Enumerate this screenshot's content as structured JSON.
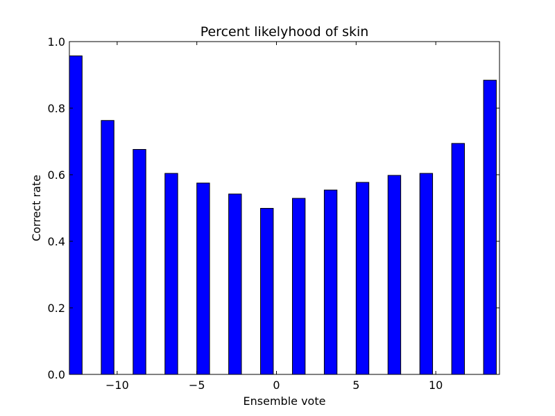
{
  "chart_data": {
    "type": "bar",
    "title": "Percent likelyhood of skin",
    "xlabel": "Ensemble vote",
    "ylabel": "Correct rate",
    "xlim": [
      -13,
      14
    ],
    "ylim": [
      0,
      1.0
    ],
    "x": [
      -13,
      -11,
      -9,
      -7,
      -5,
      -3,
      -1,
      1,
      3,
      5,
      7,
      9,
      11,
      13
    ],
    "values": [
      0.957,
      0.763,
      0.676,
      0.604,
      0.575,
      0.542,
      0.499,
      0.529,
      0.554,
      0.577,
      0.598,
      0.604,
      0.694,
      0.884
    ],
    "bar_width": 0.8,
    "bar_color": "#0000ff",
    "edge_color": "#000000",
    "xticks": [
      -10,
      -5,
      0,
      5,
      10
    ],
    "xtick_labels": [
      "−10",
      "−5",
      "0",
      "5",
      "10"
    ],
    "yticks": [
      0.0,
      0.2,
      0.4,
      0.6,
      0.8,
      1.0
    ],
    "ytick_labels": [
      "0.0",
      "0.2",
      "0.4",
      "0.6",
      "0.8",
      "1.0"
    ],
    "grid": false,
    "legend": "none"
  }
}
